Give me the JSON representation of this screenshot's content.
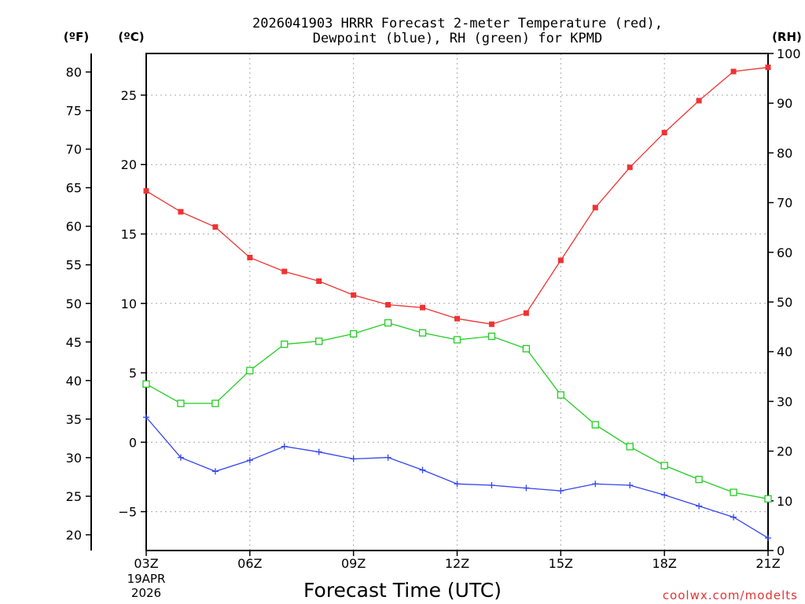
{
  "chart_data": {
    "type": "line",
    "title_line1": "2026041903 HRRR Forecast 2-meter Temperature (red),",
    "title_line2": "Dewpoint (blue), RH (green) for KPMD",
    "xlabel": "Forecast Time (UTC)",
    "date_line1": "19APR",
    "date_line2": "2026",
    "credit": "coolwx.com/modelts",
    "unit_f": "(ºF)",
    "unit_c": "(ºC)",
    "unit_rh": "(RH)",
    "x_hours": [
      3,
      4,
      5,
      6,
      7,
      8,
      9,
      10,
      11,
      12,
      13,
      14,
      15,
      16,
      17,
      18,
      19,
      20,
      21
    ],
    "x_ticks": [
      {
        "hour": 3,
        "label": "03Z"
      },
      {
        "hour": 6,
        "label": "06Z"
      },
      {
        "hour": 9,
        "label": "09Z"
      },
      {
        "hour": 12,
        "label": "12Z"
      },
      {
        "hour": 15,
        "label": "15Z"
      },
      {
        "hour": 18,
        "label": "18Z"
      },
      {
        "hour": 21,
        "label": "21Z"
      }
    ],
    "c_axis": {
      "range": [
        -7.8,
        28
      ],
      "ticks": [
        -5,
        0,
        5,
        10,
        15,
        20,
        25
      ],
      "labels": [
        "−5",
        "0",
        "5",
        "10",
        "15",
        "20",
        "25"
      ]
    },
    "f_axis": {
      "range": [
        17.96,
        82.4
      ],
      "ticks": [
        20,
        25,
        30,
        35,
        40,
        45,
        50,
        55,
        60,
        65,
        70,
        75,
        80
      ],
      "labels": [
        "20",
        "25",
        "30",
        "35",
        "40",
        "45",
        "50",
        "55",
        "60",
        "65",
        "70",
        "75",
        "80"
      ]
    },
    "rh_axis": {
      "range": [
        0,
        100
      ],
      "ticks": [
        0,
        10,
        20,
        30,
        40,
        50,
        60,
        70,
        80,
        90,
        100
      ],
      "labels": [
        "0",
        "10",
        "20",
        "30",
        "40",
        "50",
        "60",
        "70",
        "80",
        "90",
        "100"
      ]
    },
    "series": [
      {
        "name": "Temperature",
        "axis": "c",
        "color": "#ee3333",
        "marker": "filled-square",
        "values": [
          18.1,
          16.6,
          15.5,
          13.3,
          12.3,
          11.6,
          10.6,
          9.9,
          9.7,
          8.9,
          8.5,
          9.3,
          13.1,
          16.9,
          19.8,
          22.3,
          24.6,
          26.7,
          27.0
        ]
      },
      {
        "name": "Dewpoint",
        "axis": "c",
        "color": "#3344ee",
        "marker": "plus",
        "values": [
          1.8,
          -1.1,
          -2.1,
          -1.3,
          -0.3,
          -0.7,
          -1.2,
          -1.1,
          -2.0,
          -3.0,
          -3.1,
          -3.3,
          -3.5,
          -3.0,
          -3.1,
          -3.8,
          -4.6,
          -5.4,
          -6.9
        ]
      },
      {
        "name": "RH",
        "axis": "rh",
        "color": "#22cc22",
        "marker": "open-square",
        "values": [
          33.5,
          29.6,
          29.6,
          36.2,
          41.5,
          42.1,
          43.6,
          45.8,
          43.8,
          42.4,
          43.1,
          40.6,
          31.3,
          25.3,
          20.9,
          17.1,
          14.3,
          11.7,
          10.4
        ]
      }
    ]
  }
}
